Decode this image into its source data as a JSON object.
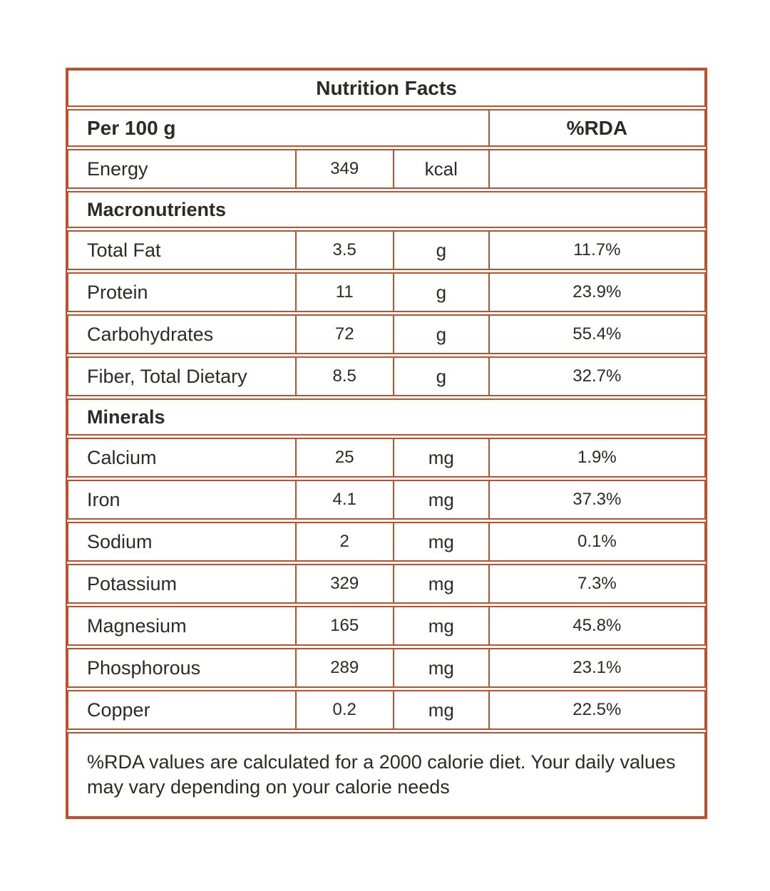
{
  "title": "Nutrition Facts",
  "header": {
    "serving": "Per 100 g",
    "rda": "%RDA"
  },
  "energy": {
    "label": "Energy",
    "value": "349",
    "unit": "kcal",
    "rda": ""
  },
  "sections": [
    {
      "label": "Macronutrients",
      "rows": [
        {
          "label": "Total Fat",
          "value": "3.5",
          "unit": "g",
          "rda": "11.7%"
        },
        {
          "label": "Protein",
          "value": "11",
          "unit": "g",
          "rda": "23.9%"
        },
        {
          "label": "Carbohydrates",
          "value": "72",
          "unit": "g",
          "rda": "55.4%"
        },
        {
          "label": "Fiber, Total Dietary",
          "value": "8.5",
          "unit": "g",
          "rda": "32.7%"
        }
      ]
    },
    {
      "label": "Minerals",
      "rows": [
        {
          "label": "Calcium",
          "value": "25",
          "unit": "mg",
          "rda": "1.9%"
        },
        {
          "label": "Iron",
          "value": "4.1",
          "unit": "mg",
          "rda": "37.3%"
        },
        {
          "label": "Sodium",
          "value": "2",
          "unit": "mg",
          "rda": "0.1%"
        },
        {
          "label": "Potassium",
          "value": "329",
          "unit": "mg",
          "rda": "7.3%"
        },
        {
          "label": "Magnesium",
          "value": "165",
          "unit": "mg",
          "rda": "45.8%"
        },
        {
          "label": "Phosphorous",
          "value": "289",
          "unit": "mg",
          "rda": "23.1%"
        },
        {
          "label": "Copper",
          "value": "0.2",
          "unit": "mg",
          "rda": "22.5%"
        }
      ]
    }
  ],
  "footnote": "%RDA values are calculated for a 2000 calorie diet. Your daily values may vary depending on your calorie needs",
  "colors": {
    "border": "#c04f2b",
    "text": "#2d2a27"
  }
}
